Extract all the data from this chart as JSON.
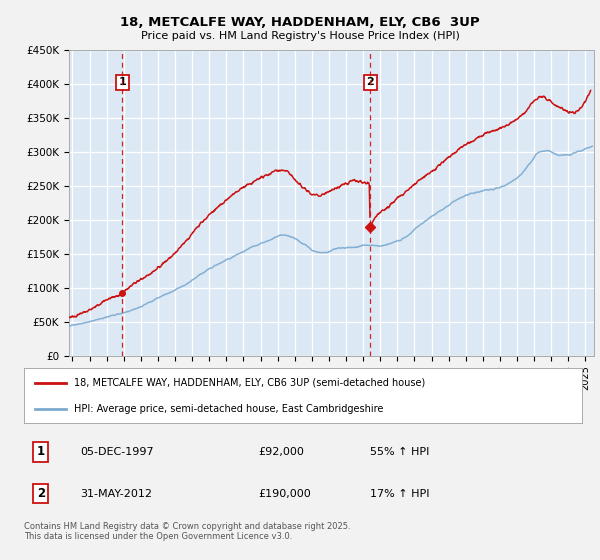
{
  "title": "18, METCALFE WAY, HADDENHAM, ELY, CB6  3UP",
  "subtitle": "Price paid vs. HM Land Registry's House Price Index (HPI)",
  "ylabel_ticks": [
    "£0",
    "£50K",
    "£100K",
    "£150K",
    "£200K",
    "£250K",
    "£300K",
    "£350K",
    "£400K",
    "£450K"
  ],
  "ytick_values": [
    0,
    50000,
    100000,
    150000,
    200000,
    250000,
    300000,
    350000,
    400000,
    450000
  ],
  "ylim": [
    0,
    450000
  ],
  "xlim_start": 1994.8,
  "xlim_end": 2025.5,
  "xtick_years": [
    1995,
    1996,
    1997,
    1998,
    1999,
    2000,
    2001,
    2002,
    2003,
    2004,
    2005,
    2006,
    2007,
    2008,
    2009,
    2010,
    2011,
    2012,
    2013,
    2014,
    2015,
    2016,
    2017,
    2018,
    2019,
    2020,
    2021,
    2022,
    2023,
    2024,
    2025
  ],
  "hpi_color": "#7aaad0",
  "price_color": "#cc1111",
  "vline_color": "#cc1111",
  "plot_bg_color": "#dce9f5",
  "grid_color": "#ffffff",
  "sale1_year": 1997.92,
  "sale1_price": 92000,
  "sale1_date": "05-DEC-1997",
  "sale1_hpi": "55% ↑ HPI",
  "sale2_year": 2012.42,
  "sale2_price": 190000,
  "sale2_date": "31-MAY-2012",
  "sale2_hpi": "17% ↑ HPI",
  "legend_line1": "18, METCALFE WAY, HADDENHAM, ELY, CB6 3UP (semi-detached house)",
  "legend_line2": "HPI: Average price, semi-detached house, East Cambridgeshire",
  "footer": "Contains HM Land Registry data © Crown copyright and database right 2025.\nThis data is licensed under the Open Government Licence v3.0.",
  "fig_bg": "#f2f2f2"
}
